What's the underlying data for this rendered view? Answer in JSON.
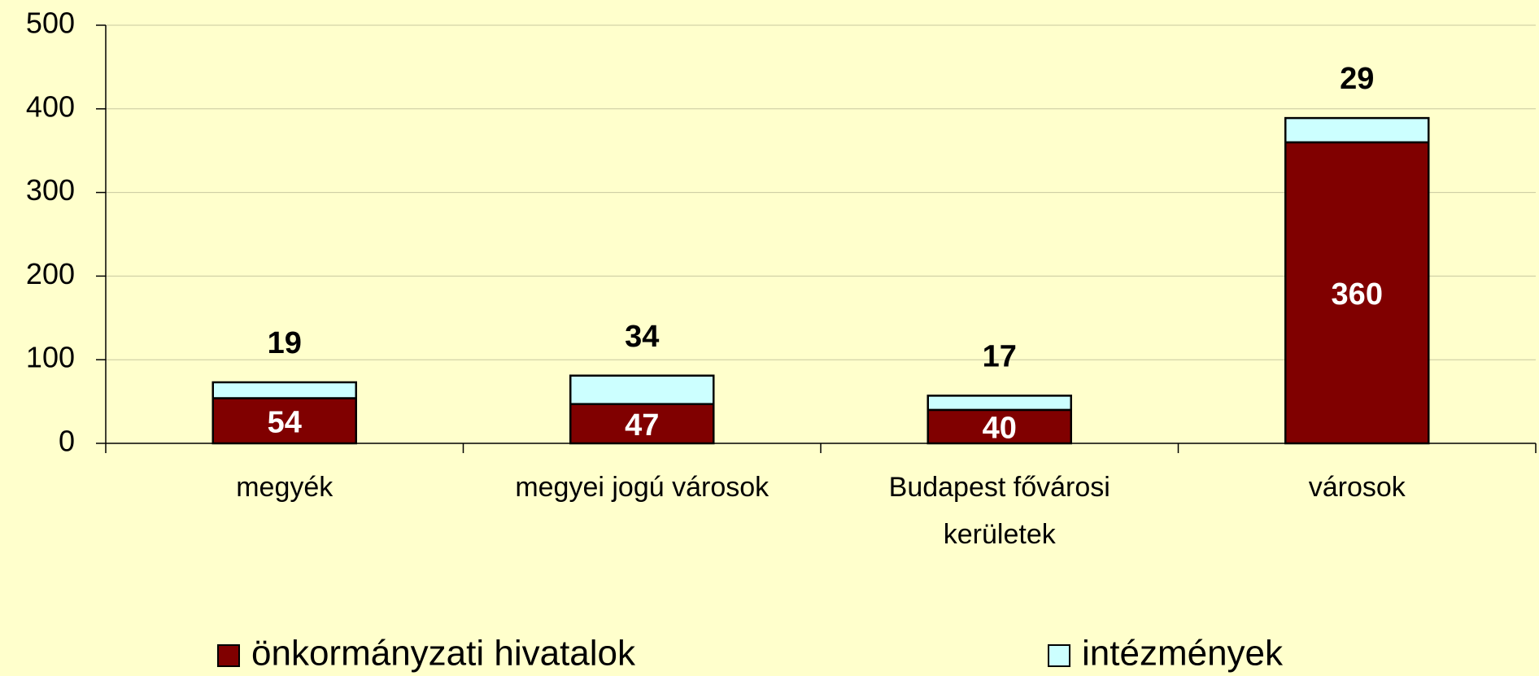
{
  "chart_data": {
    "type": "stacked_bar",
    "categories": [
      "megyék",
      "megyei jogú városok",
      "Budapest fővárosi\nkerületek",
      "városok"
    ],
    "series": [
      {
        "name": "önkormányzati hivatalok",
        "color": "#800000",
        "values": [
          54,
          47,
          40,
          360
        ]
      },
      {
        "name": "intézmények",
        "color": "#ccffff",
        "values": [
          19,
          34,
          17,
          29
        ]
      }
    ],
    "ylim": [
      0,
      500
    ],
    "yticks": [
      0,
      100,
      200,
      300,
      400,
      500
    ],
    "grid": true,
    "legend": "bottom"
  }
}
